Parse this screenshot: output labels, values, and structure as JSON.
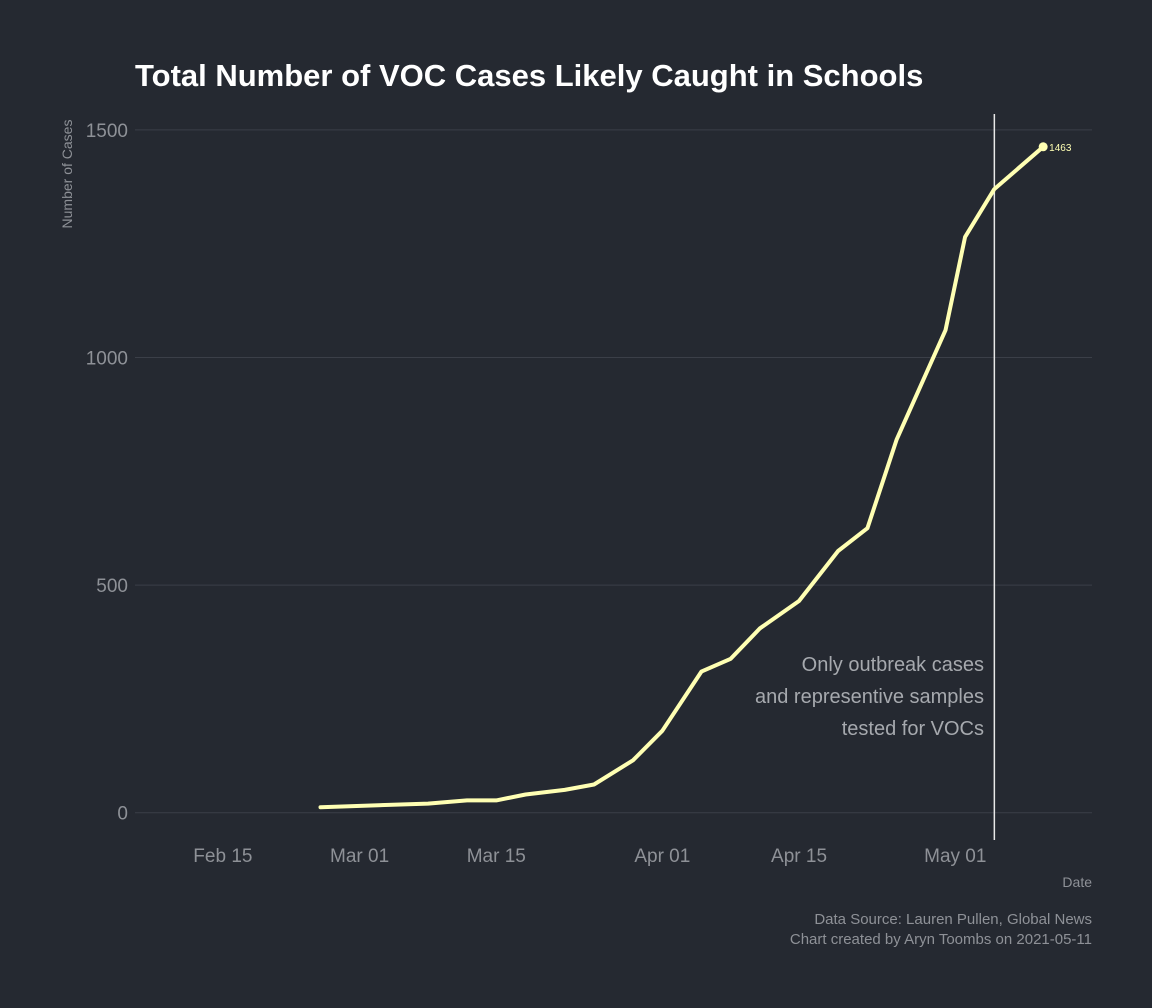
{
  "chart_data": {
    "type": "line",
    "title": "Total Number of VOC Cases Likely Caught in Schools",
    "xlabel": "Date",
    "ylabel": "Number of Cases",
    "x_ticks": [
      {
        "date": "2021-02-15",
        "label": "Feb 15"
      },
      {
        "date": "2021-03-01",
        "label": "Mar 01"
      },
      {
        "date": "2021-03-15",
        "label": "Mar 15"
      },
      {
        "date": "2021-04-01",
        "label": "Apr 01"
      },
      {
        "date": "2021-04-15",
        "label": "Apr 15"
      },
      {
        "date": "2021-05-01",
        "label": "May 01"
      }
    ],
    "y_ticks": [
      0,
      500,
      1000,
      1500
    ],
    "xlim": [
      "2021-02-06",
      "2021-05-15"
    ],
    "ylim": [
      -60,
      1535
    ],
    "grid": "horizontal",
    "line_color": "#ffffb3",
    "series": [
      {
        "x": [
          "2021-02-25",
          "2021-03-08",
          "2021-03-12",
          "2021-03-15",
          "2021-03-18",
          "2021-03-22",
          "2021-03-25",
          "2021-03-29",
          "2021-04-01",
          "2021-04-05",
          "2021-04-08",
          "2021-04-11",
          "2021-04-15",
          "2021-04-19",
          "2021-04-22",
          "2021-04-25",
          "2021-04-30",
          "2021-05-02",
          "2021-05-05",
          "2021-05-10"
        ],
        "y": [
          12,
          20,
          27,
          27,
          40,
          50,
          62,
          115,
          180,
          310,
          338,
          405,
          465,
          575,
          625,
          820,
          1060,
          1265,
          1370,
          1463
        ]
      }
    ],
    "end_point": {
      "date": "2021-05-10",
      "value": 1463,
      "label": "1463"
    },
    "reference_line": {
      "date": "2021-05-05"
    },
    "annotation": {
      "lines": [
        "Only outbreak cases",
        "and representive samples",
        "tested for VOCs"
      ]
    },
    "caption": {
      "line1": "Data Source: Lauren Pullen, Global News",
      "line2": "Chart created by Aryn Toombs on 2021-05-11"
    }
  }
}
